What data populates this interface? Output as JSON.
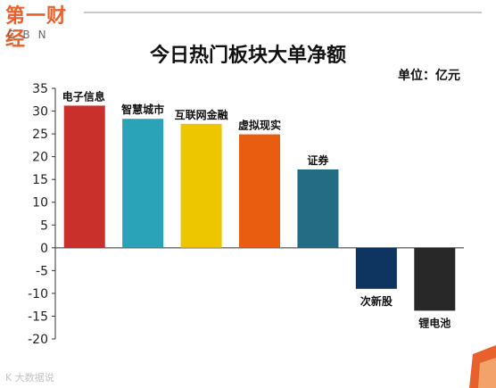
{
  "logo": {
    "main": "第一财经",
    "sub": "CBN",
    "accent_color": "#e8602c"
  },
  "watermark": "K 大数据说",
  "chart_data": {
    "type": "bar",
    "title": "今日热门板块大单净额",
    "unit": "单位：亿元",
    "categories": [
      "电子信息",
      "智慧城市",
      "互联网金融",
      "虚拟现实",
      "证券",
      "次新股",
      "锂电池"
    ],
    "values": [
      31.2,
      28.3,
      27.2,
      24.9,
      17.2,
      -9.0,
      -13.8
    ],
    "colors": [
      "#c9302c",
      "#2aa2b8",
      "#eec600",
      "#e85d10",
      "#246b84",
      "#0d3560",
      "#282828"
    ],
    "ylim": [
      -20,
      35
    ],
    "yticks": [
      35,
      30,
      25,
      20,
      15,
      10,
      5,
      0,
      -5,
      -10,
      -15,
      -20
    ],
    "xlabel": "",
    "ylabel": "",
    "grid": false,
    "legend": "none"
  }
}
